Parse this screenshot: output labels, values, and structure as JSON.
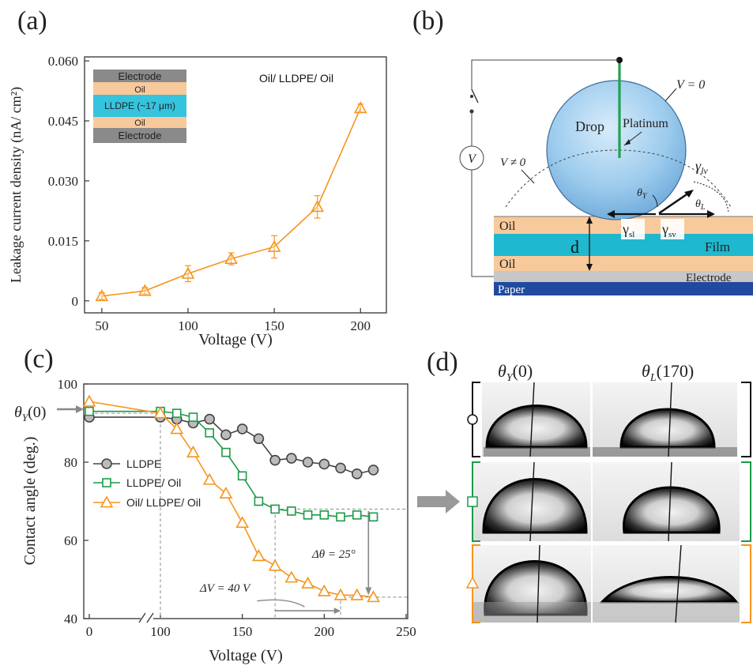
{
  "panels": {
    "a": "(a)",
    "b": "(b)",
    "c": "(c)",
    "d": "(d)"
  },
  "panel_a": {
    "annotation": "Oil/ LLDPE/ Oil",
    "inset_layers": [
      "Electrode",
      "Oil",
      "LLDPE (~17 μm)",
      "Oil",
      "Electrode"
    ],
    "colors": {
      "electrode": "#8a8a8a",
      "oil": "#f8c99a",
      "lldpe": "#36c3dd",
      "series": "#f7941d"
    }
  },
  "panel_b": {
    "labels": {
      "drop": "Drop",
      "platinum": "Platinum",
      "v_zero": "V = 0",
      "v_nonzero": "V ≠ 0",
      "v_source": "V",
      "gamma_lv": "γ",
      "gamma_lv_sub": "lv",
      "theta_y": "θ",
      "theta_y_sub": "Y",
      "theta_l": "θ",
      "theta_l_sub": "L",
      "gamma_sl": "γ",
      "gamma_sl_sub": "sl",
      "gamma_sv": "γ",
      "gamma_sv_sub": "sv",
      "oil_top": "Oil",
      "film": "Film",
      "d": "d",
      "oil_bottom": "Oil",
      "electrode": "Electrode",
      "paper": "Paper"
    },
    "colors": {
      "oil": "#f8c99a",
      "film": "#1fb8cf",
      "electrode": "#c7c7c7",
      "paper": "#1f4aa0",
      "drop": "#8fc3ea",
      "platinum": "#22a050"
    }
  },
  "panel_c": {
    "theta_y0_label": "θ",
    "theta_y0_sub": "Y",
    "theta_y0_arg": "(0)",
    "delta_theta_label": "Δθ = 25°",
    "delta_v_label": "ΔV = 40 V"
  },
  "panel_d": {
    "col1_title": "θ",
    "col1_sub": "Y",
    "col1_arg": "(0)",
    "col2_title": "θ",
    "col2_sub": "L",
    "col2_arg": "(170)"
  },
  "chart_data": [
    {
      "id": "a",
      "type": "line",
      "title": "",
      "xlabel": "Voltage (V)",
      "ylabel": "Leakage current density (nA/ cm²)",
      "xlim": [
        40,
        215
      ],
      "ylim": [
        -0.003,
        0.061
      ],
      "xticks": [
        50,
        100,
        150,
        200
      ],
      "yticks": [
        0,
        0.015,
        0.03,
        0.045,
        0.06
      ],
      "ytick_labels": [
        "0",
        "0.015",
        "0.030",
        "0.045",
        "0.060"
      ],
      "series": [
        {
          "x": [
            50,
            75,
            100,
            125,
            150,
            175,
            200
          ],
          "y": [
            0.0012,
            0.0025,
            0.0068,
            0.0105,
            0.0135,
            0.0235,
            0.0482
          ],
          "err": [
            0.0008,
            0.0008,
            0.002,
            0.0015,
            0.0028,
            0.0028,
            0.001
          ],
          "color": "#f7941d",
          "marker": "triangle"
        }
      ]
    },
    {
      "id": "c",
      "type": "line",
      "title": "",
      "xlabel": "Voltage (V)",
      "ylabel": "Contact angle (deg.)",
      "ylim": [
        40,
        100
      ],
      "xticks": [
        0,
        100,
        150,
        200,
        250
      ],
      "yticks": [
        40,
        60,
        80,
        100
      ],
      "broken_axis": {
        "from": 0,
        "to": 100
      },
      "series": [
        {
          "name": "LLDPE",
          "color": "#444444",
          "fill": "#bbbbbb",
          "marker": "circle",
          "x": [
            0,
            100,
            110,
            120,
            130,
            140,
            150,
            160,
            170,
            180,
            190,
            200,
            210,
            220,
            230
          ],
          "y": [
            91.5,
            91.5,
            91,
            90,
            91,
            87,
            88.5,
            86,
            80.5,
            81,
            80,
            79.5,
            78.5,
            77,
            78
          ]
        },
        {
          "name": "LLDPE/ Oil",
          "color": "#1b9a48",
          "fill": "#ffffff",
          "marker": "square",
          "x": [
            0,
            100,
            110,
            120,
            130,
            140,
            150,
            160,
            170,
            180,
            190,
            200,
            210,
            220,
            230
          ],
          "y": [
            93,
            93,
            92.5,
            91.5,
            87.5,
            82.5,
            76.5,
            70,
            68,
            67.5,
            66.5,
            66.5,
            66,
            66.5,
            66
          ]
        },
        {
          "name": "Oil/ LLDPE/ Oil",
          "color": "#f7941d",
          "fill": "#ffffff",
          "marker": "triangle",
          "x": [
            0,
            100,
            110,
            120,
            130,
            140,
            150,
            160,
            170,
            180,
            190,
            200,
            210,
            220,
            230
          ],
          "y": [
            95.5,
            92.5,
            88.5,
            82.5,
            75.5,
            72,
            64.5,
            56,
            53.5,
            50.5,
            49,
            47,
            46,
            46,
            45.5
          ]
        }
      ]
    }
  ]
}
